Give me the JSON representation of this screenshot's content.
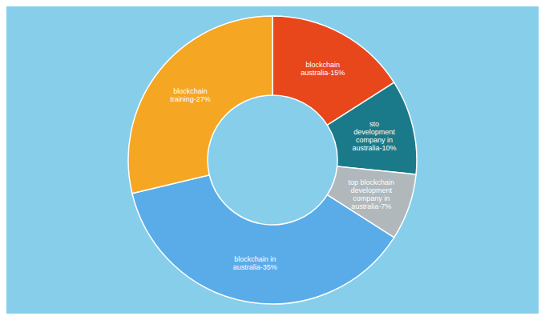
{
  "chart_data": {
    "type": "pie",
    "categories": [
      "blockchain australia-15%",
      "sto development company in australia-10%",
      "top blockchain development company in australia-7%",
      "blockchain in australia-35%",
      "blockchain training-27%"
    ],
    "values": [
      15,
      10,
      7,
      35,
      27
    ],
    "colors": [
      "#E8471C",
      "#1A7A8A",
      "#B0B8BC",
      "#5AACE8",
      "#F5A623"
    ]
  }
}
